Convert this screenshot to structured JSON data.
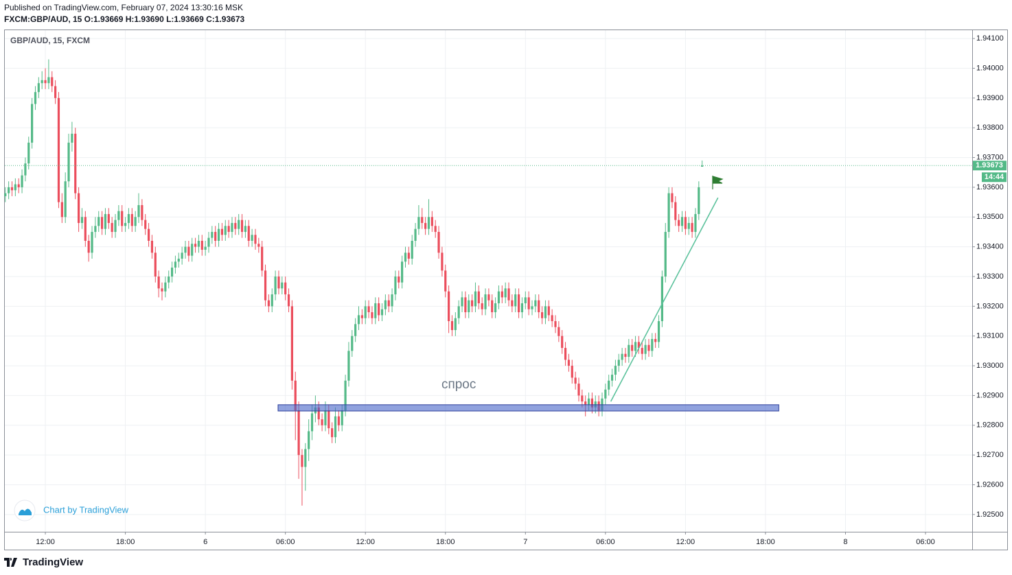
{
  "header": {
    "published": "Published on TradingView.com, February 07, 2024 13:30:16 MSK",
    "ohlc_line": "FXCM:GBP/AUD, 15  O:1.93669 H:1.93690 L:1.93669 C:1.93673"
  },
  "footer": {
    "watermark": "Chart by TradingView",
    "brand": "TradingView"
  },
  "chart_data": {
    "type": "candlestick",
    "title": "GBP/AUD, 15, FXCM",
    "x": [
      9,
      9.25,
      9.5,
      9.75,
      10,
      10.25,
      10.5,
      10.75,
      11,
      11.25,
      11.5,
      11.75,
      12,
      12.25,
      12.5,
      12.75,
      13,
      13.25,
      13.5,
      13.75,
      14,
      14.25,
      14.5,
      14.75,
      15,
      15.25,
      15.5,
      15.75,
      16,
      16.25,
      16.5,
      16.75,
      17,
      17.25,
      17.5,
      17.75,
      18,
      18.25,
      18.5,
      18.75,
      19,
      19.25,
      19.5,
      19.75,
      20,
      20.25,
      20.5,
      20.75,
      21,
      21.25,
      21.5,
      21.75,
      22,
      22.25,
      22.5,
      22.75,
      23,
      23.25,
      23.5,
      23.75,
      24,
      24.25,
      24.5,
      24.75,
      25,
      25.25,
      25.5,
      25.75,
      26,
      26.25,
      26.5,
      26.75,
      27,
      27.25,
      27.5,
      27.75,
      28,
      28.25,
      28.5,
      28.75,
      29,
      29.25,
      29.5,
      29.75,
      30,
      30.25,
      30.5,
      30.75,
      31,
      31.25,
      31.5,
      31.75,
      32,
      32.25,
      32.5,
      32.75,
      33,
      33.25,
      33.5,
      33.75,
      34,
      34.25,
      34.5,
      34.75,
      35,
      35.25,
      35.5,
      35.75,
      36,
      36.25,
      36.5,
      36.75,
      37,
      37.25,
      37.5,
      37.75,
      38,
      38.25,
      38.5,
      38.75,
      39,
      39.25,
      39.5,
      39.75,
      40,
      40.25,
      40.5,
      40.75,
      41,
      41.25,
      41.5,
      41.75,
      42,
      42.25,
      42.5,
      42.75,
      43,
      43.25,
      43.5,
      43.75,
      44,
      44.25,
      44.5,
      44.75,
      45,
      45.25,
      45.5,
      45.75,
      46,
      46.25,
      46.5,
      46.75,
      47,
      47.25,
      47.5,
      47.75,
      48,
      48.25,
      48.5,
      48.75,
      49,
      49.25,
      49.5,
      49.75,
      50,
      50.25,
      50.5,
      50.75,
      51,
      51.25,
      51.5,
      51.75,
      52,
      52.25,
      52.5,
      52.75,
      53,
      53.25,
      53.5,
      53.75,
      54,
      54.25,
      54.5,
      54.75,
      55,
      55.25,
      55.5,
      55.75,
      56,
      56.25,
      56.5,
      56.75,
      57,
      57.25,
      57.5,
      57.75,
      58,
      58.25,
      58.5,
      58.75,
      59,
      59.25,
      59.5,
      59.75,
      60,
      60.25,
      60.5,
      60.75,
      61,
      61.25
    ],
    "open": [
      1.9357,
      1.9358,
      1.936,
      1.9359,
      1.9361,
      1.936,
      1.9364,
      1.9368,
      1.9375,
      1.9388,
      1.9392,
      1.9395,
      1.9396,
      1.9395,
      1.9397,
      1.9394,
      1.939,
      1.9355,
      1.935,
      1.9362,
      1.9375,
      1.9378,
      1.9358,
      1.9348,
      1.935,
      1.9342,
      1.9338,
      1.9345,
      1.9347,
      1.935,
      1.9346,
      1.9351,
      1.9348,
      1.9345,
      1.9349,
      1.9352,
      1.9347,
      1.9348,
      1.9351,
      1.9347,
      1.935,
      1.9354,
      1.9349,
      1.9346,
      1.9342,
      1.9338,
      1.933,
      1.9326,
      1.9325,
      1.9328,
      1.933,
      1.9333,
      1.9335,
      1.9336,
      1.9338,
      1.934,
      1.9337,
      1.9341,
      1.934,
      1.9342,
      1.9339,
      1.934,
      1.9343,
      1.9345,
      1.9342,
      1.9346,
      1.9344,
      1.9347,
      1.9345,
      1.9348,
      1.9346,
      1.9349,
      1.9345,
      1.9347,
      1.9342,
      1.9344,
      1.9341,
      1.934,
      1.9332,
      1.9322,
      1.932,
      1.9324,
      1.933,
      1.9326,
      1.9328,
      1.9324,
      1.932,
      1.9295,
      1.9285,
      1.927,
      1.9266,
      1.9272,
      1.9278,
      1.9284,
      1.9286,
      1.9282,
      1.928,
      1.9285,
      1.9279,
      1.9276,
      1.9283,
      1.928,
      1.9285,
      1.9295,
      1.9305,
      1.931,
      1.9314,
      1.9317,
      1.9316,
      1.932,
      1.9318,
      1.9316,
      1.9321,
      1.9317,
      1.9319,
      1.9322,
      1.932,
      1.9324,
      1.933,
      1.9328,
      1.9335,
      1.9338,
      1.9336,
      1.9342,
      1.9346,
      1.935,
      1.9348,
      1.9346,
      1.935,
      1.9347,
      1.9345,
      1.9338,
      1.9332,
      1.9325,
      1.9315,
      1.9312,
      1.9316,
      1.932,
      1.9323,
      1.9318,
      1.9322,
      1.932,
      1.9325,
      1.9321,
      1.9319,
      1.9324,
      1.9322,
      1.9318,
      1.9321,
      1.9325,
      1.9323,
      1.9326,
      1.9322,
      1.932,
      1.9324,
      1.9318,
      1.9321,
      1.9323,
      1.9319,
      1.932,
      1.9322,
      1.9318,
      1.9316,
      1.932,
      1.9317,
      1.9315,
      1.9313,
      1.931,
      1.9306,
      1.9302,
      1.93,
      1.9296,
      1.9294,
      1.929,
      1.9288,
      1.9287,
      1.9289,
      1.9286,
      1.9288,
      1.9285,
      1.9289,
      1.9292,
      1.9295,
      1.9297,
      1.93,
      1.9302,
      1.9304,
      1.9303,
      1.9307,
      1.9305,
      1.9308,
      1.9306,
      1.9304,
      1.9307,
      1.9305,
      1.9309,
      1.9308,
      1.9315,
      1.933,
      1.9345,
      1.9358,
      1.9355,
      1.9349,
      1.9347,
      1.935,
      1.9346,
      1.9348,
      1.9345,
      1.9351,
      1.93669
    ],
    "high": [
      1.936,
      1.9362,
      1.9362,
      1.9363,
      1.9363,
      1.9366,
      1.937,
      1.9377,
      1.939,
      1.9394,
      1.9397,
      1.9399,
      1.94,
      1.9403,
      1.9399,
      1.9396,
      1.9392,
      1.9358,
      1.9365,
      1.9378,
      1.9382,
      1.938,
      1.936,
      1.9353,
      1.9352,
      1.9344,
      1.9347,
      1.935,
      1.9352,
      1.9352,
      1.9353,
      1.9353,
      1.935,
      1.9351,
      1.9354,
      1.9354,
      1.935,
      1.9353,
      1.9353,
      1.9352,
      1.9358,
      1.9356,
      1.9351,
      1.9348,
      1.9344,
      1.934,
      1.9332,
      1.9328,
      1.933,
      1.9332,
      1.9335,
      1.9337,
      1.9338,
      1.934,
      1.9342,
      1.9342,
      1.9343,
      1.9343,
      1.9344,
      1.9344,
      1.9342,
      1.9345,
      1.9347,
      1.9347,
      1.9348,
      1.9348,
      1.9349,
      1.9349,
      1.935,
      1.935,
      1.9351,
      1.9351,
      1.9349,
      1.9349,
      1.9346,
      1.9346,
      1.9343,
      1.9342,
      1.9334,
      1.9324,
      1.9326,
      1.9332,
      1.9332,
      1.933,
      1.933,
      1.9326,
      1.9322,
      1.9298,
      1.9288,
      1.9272,
      1.9274,
      1.9282,
      1.9287,
      1.929,
      1.9288,
      1.9284,
      1.9288,
      1.9287,
      1.9281,
      1.9286,
      1.9285,
      1.9287,
      1.9297,
      1.9308,
      1.9312,
      1.9316,
      1.932,
      1.9319,
      1.9322,
      1.9322,
      1.932,
      1.9323,
      1.9323,
      1.9321,
      1.9324,
      1.9324,
      1.9326,
      1.9332,
      1.9332,
      1.9337,
      1.934,
      1.934,
      1.9344,
      1.9348,
      1.9354,
      1.9353,
      1.935,
      1.9356,
      1.9352,
      1.9349,
      1.9347,
      1.934,
      1.9334,
      1.9327,
      1.9317,
      1.9318,
      1.9322,
      1.9325,
      1.9325,
      1.9324,
      1.9324,
      1.9328,
      1.9327,
      1.9323,
      1.9326,
      1.9326,
      1.9324,
      1.9323,
      1.9327,
      1.9327,
      1.9328,
      1.9328,
      1.9324,
      1.9326,
      1.9326,
      1.9323,
      1.9325,
      1.9325,
      1.9322,
      1.9324,
      1.9324,
      1.932,
      1.9322,
      1.9322,
      1.9319,
      1.9317,
      1.9315,
      1.9312,
      1.9308,
      1.9304,
      1.9302,
      1.9298,
      1.9296,
      1.9292,
      1.929,
      1.9291,
      1.9291,
      1.929,
      1.929,
      1.9291,
      1.9294,
      1.9297,
      1.9299,
      1.9302,
      1.9304,
      1.9306,
      1.9306,
      1.9309,
      1.9309,
      1.931,
      1.931,
      1.9308,
      1.9309,
      1.9309,
      1.9311,
      1.9311,
      1.9317,
      1.9332,
      1.9348,
      1.936,
      1.936,
      1.9357,
      1.9351,
      1.9352,
      1.9352,
      1.935,
      1.935,
      1.9353,
      1.9362,
      1.9369
    ],
    "low": [
      1.9355,
      1.9356,
      1.9357,
      1.9357,
      1.9358,
      1.9358,
      1.9362,
      1.9366,
      1.9373,
      1.9386,
      1.939,
      1.9393,
      1.9393,
      1.9393,
      1.9392,
      1.9388,
      1.9353,
      1.9348,
      1.9348,
      1.936,
      1.9372,
      1.9356,
      1.9345,
      1.9346,
      1.934,
      1.9335,
      1.9336,
      1.9343,
      1.9345,
      1.9344,
      1.9344,
      1.9346,
      1.9343,
      1.9343,
      1.9347,
      1.9345,
      1.9345,
      1.9346,
      1.9345,
      1.9345,
      1.9348,
      1.9347,
      1.9344,
      1.934,
      1.9336,
      1.9328,
      1.9323,
      1.9322,
      1.9323,
      1.9326,
      1.9328,
      1.9331,
      1.9333,
      1.9334,
      1.9336,
      1.9335,
      1.9335,
      1.9338,
      1.9338,
      1.9337,
      1.9337,
      1.9338,
      1.9341,
      1.934,
      1.934,
      1.9342,
      1.9342,
      1.9343,
      1.9343,
      1.9344,
      1.9344,
      1.9343,
      1.9343,
      1.934,
      1.934,
      1.9339,
      1.9338,
      1.933,
      1.932,
      1.9318,
      1.9318,
      1.9322,
      1.9324,
      1.9324,
      1.9322,
      1.9318,
      1.9292,
      1.9275,
      1.9262,
      1.9253,
      1.9258,
      1.9268,
      1.9275,
      1.9281,
      1.928,
      1.9278,
      1.9278,
      1.9277,
      1.9274,
      1.9274,
      1.9278,
      1.9278,
      1.9283,
      1.9293,
      1.9303,
      1.9308,
      1.9312,
      1.9314,
      1.9314,
      1.9316,
      1.9314,
      1.9314,
      1.9315,
      1.9315,
      1.9317,
      1.9318,
      1.9318,
      1.9322,
      1.9326,
      1.9326,
      1.9333,
      1.9334,
      1.9334,
      1.934,
      1.9344,
      1.9346,
      1.9344,
      1.9344,
      1.9345,
      1.9343,
      1.9336,
      1.933,
      1.9323,
      1.9311,
      1.931,
      1.931,
      1.9314,
      1.9318,
      1.9316,
      1.9316,
      1.9318,
      1.9318,
      1.9319,
      1.9317,
      1.9317,
      1.932,
      1.9316,
      1.9316,
      1.9319,
      1.9321,
      1.9321,
      1.932,
      1.9318,
      1.9318,
      1.9316,
      1.9316,
      1.9319,
      1.9317,
      1.9317,
      1.9318,
      1.9316,
      1.9314,
      1.9314,
      1.9315,
      1.9313,
      1.9311,
      1.9308,
      1.9304,
      1.93,
      1.9298,
      1.9294,
      1.9292,
      1.9288,
      1.9286,
      1.9283,
      1.9285,
      1.9284,
      1.9284,
      1.9283,
      1.9283,
      1.9287,
      1.929,
      1.9293,
      1.9295,
      1.9298,
      1.93,
      1.9301,
      1.9301,
      1.9303,
      1.9303,
      1.9304,
      1.9302,
      1.9302,
      1.9303,
      1.9303,
      1.9306,
      1.9306,
      1.9313,
      1.9328,
      1.9343,
      1.9353,
      1.9347,
      1.9345,
      1.9345,
      1.9344,
      1.9344,
      1.9343,
      1.9343,
      1.9349,
      1.93669
    ],
    "close": [
      1.9358,
      1.936,
      1.9359,
      1.9361,
      1.936,
      1.9364,
      1.9368,
      1.9375,
      1.9388,
      1.9392,
      1.9395,
      1.9396,
      1.9395,
      1.9397,
      1.9394,
      1.939,
      1.9355,
      1.935,
      1.9362,
      1.9375,
      1.9378,
      1.9358,
      1.9348,
      1.935,
      1.9342,
      1.9338,
      1.9345,
      1.9347,
      1.935,
      1.9346,
      1.9351,
      1.9348,
      1.9345,
      1.9349,
      1.9352,
      1.9347,
      1.9348,
      1.9351,
      1.9347,
      1.935,
      1.9354,
      1.9349,
      1.9346,
      1.9342,
      1.9338,
      1.933,
      1.9326,
      1.9325,
      1.9328,
      1.933,
      1.9333,
      1.9335,
      1.9336,
      1.9338,
      1.934,
      1.9337,
      1.9341,
      1.934,
      1.9342,
      1.9339,
      1.934,
      1.9343,
      1.9345,
      1.9342,
      1.9346,
      1.9344,
      1.9347,
      1.9345,
      1.9348,
      1.9346,
      1.9349,
      1.9345,
      1.9347,
      1.9342,
      1.9344,
      1.9341,
      1.934,
      1.9332,
      1.9322,
      1.932,
      1.9324,
      1.933,
      1.9326,
      1.9328,
      1.9324,
      1.932,
      1.9295,
      1.9285,
      1.927,
      1.9266,
      1.9272,
      1.9278,
      1.9284,
      1.9286,
      1.9282,
      1.928,
      1.9285,
      1.9279,
      1.9276,
      1.9283,
      1.928,
      1.9285,
      1.9295,
      1.9305,
      1.931,
      1.9314,
      1.9317,
      1.9316,
      1.932,
      1.9318,
      1.9316,
      1.9321,
      1.9317,
      1.9319,
      1.9322,
      1.932,
      1.9324,
      1.933,
      1.9328,
      1.9335,
      1.9338,
      1.9336,
      1.9342,
      1.9346,
      1.935,
      1.9348,
      1.9346,
      1.935,
      1.9347,
      1.9345,
      1.9338,
      1.9332,
      1.9325,
      1.9315,
      1.9312,
      1.9316,
      1.932,
      1.9323,
      1.9318,
      1.9322,
      1.932,
      1.9325,
      1.9321,
      1.9319,
      1.9324,
      1.9322,
      1.9318,
      1.9321,
      1.9325,
      1.9323,
      1.9326,
      1.9322,
      1.932,
      1.9324,
      1.9318,
      1.9321,
      1.9323,
      1.9319,
      1.932,
      1.9322,
      1.9318,
      1.9316,
      1.932,
      1.9317,
      1.9315,
      1.9313,
      1.931,
      1.9306,
      1.9302,
      1.93,
      1.9296,
      1.9294,
      1.929,
      1.9288,
      1.9287,
      1.9289,
      1.9286,
      1.9288,
      1.9285,
      1.9289,
      1.9292,
      1.9295,
      1.9297,
      1.93,
      1.9302,
      1.9304,
      1.9303,
      1.9307,
      1.9305,
      1.9308,
      1.9306,
      1.9304,
      1.9307,
      1.9305,
      1.9309,
      1.9308,
      1.9315,
      1.933,
      1.9345,
      1.9358,
      1.9355,
      1.9349,
      1.9347,
      1.935,
      1.9346,
      1.9348,
      1.9345,
      1.9351,
      1.936,
      1.93673
    ],
    "up_color": "#53b987",
    "down_color": "#eb4d5c",
    "xlim": [
      8.96,
      81.5
    ],
    "ylim": [
      1.92442,
      1.94128
    ],
    "xticks": [
      {
        "value": 12,
        "label": "12:00"
      },
      {
        "value": 18,
        "label": "18:00"
      },
      {
        "value": 24,
        "label": "6"
      },
      {
        "value": 30,
        "label": "06:00"
      },
      {
        "value": 36,
        "label": "12:00"
      },
      {
        "value": 42,
        "label": "18:00"
      },
      {
        "value": 48,
        "label": "7"
      },
      {
        "value": 54,
        "label": "06:00"
      },
      {
        "value": 60,
        "label": "12:00"
      },
      {
        "value": 66,
        "label": "18:00"
      },
      {
        "value": 72,
        "label": "8"
      },
      {
        "value": 78,
        "label": "06:00"
      }
    ],
    "yticks": [
      {
        "value": 1.941,
        "label": "1.94100"
      },
      {
        "value": 1.94,
        "label": "1.94000"
      },
      {
        "value": 1.939,
        "label": "1.93900"
      },
      {
        "value": 1.938,
        "label": "1.93800"
      },
      {
        "value": 1.937,
        "label": "1.93700"
      },
      {
        "value": 1.936,
        "label": "1.93600"
      },
      {
        "value": 1.935,
        "label": "1.93500"
      },
      {
        "value": 1.934,
        "label": "1.93400"
      },
      {
        "value": 1.933,
        "label": "1.93300"
      },
      {
        "value": 1.932,
        "label": "1.93200"
      },
      {
        "value": 1.931,
        "label": "1.93100"
      },
      {
        "value": 1.93,
        "label": "1.93000"
      },
      {
        "value": 1.929,
        "label": "1.92900"
      },
      {
        "value": 1.928,
        "label": "1.92800"
      },
      {
        "value": 1.927,
        "label": "1.92700"
      },
      {
        "value": 1.926,
        "label": "1.92600"
      },
      {
        "value": 1.925,
        "label": "1.92500"
      }
    ],
    "grid": true,
    "last_price": 1.93673,
    "countdown": "14:44",
    "zone": {
      "x": [
        29.45,
        67.0
      ],
      "y": [
        1.92848,
        1.92869
      ]
    },
    "trendline": {
      "x": [
        54.4,
        62.44
      ],
      "y": [
        1.9288,
        1.93565
      ]
    },
    "zone_label": {
      "text": "спрос",
      "x": 43.0,
      "y": 1.92936
    }
  }
}
